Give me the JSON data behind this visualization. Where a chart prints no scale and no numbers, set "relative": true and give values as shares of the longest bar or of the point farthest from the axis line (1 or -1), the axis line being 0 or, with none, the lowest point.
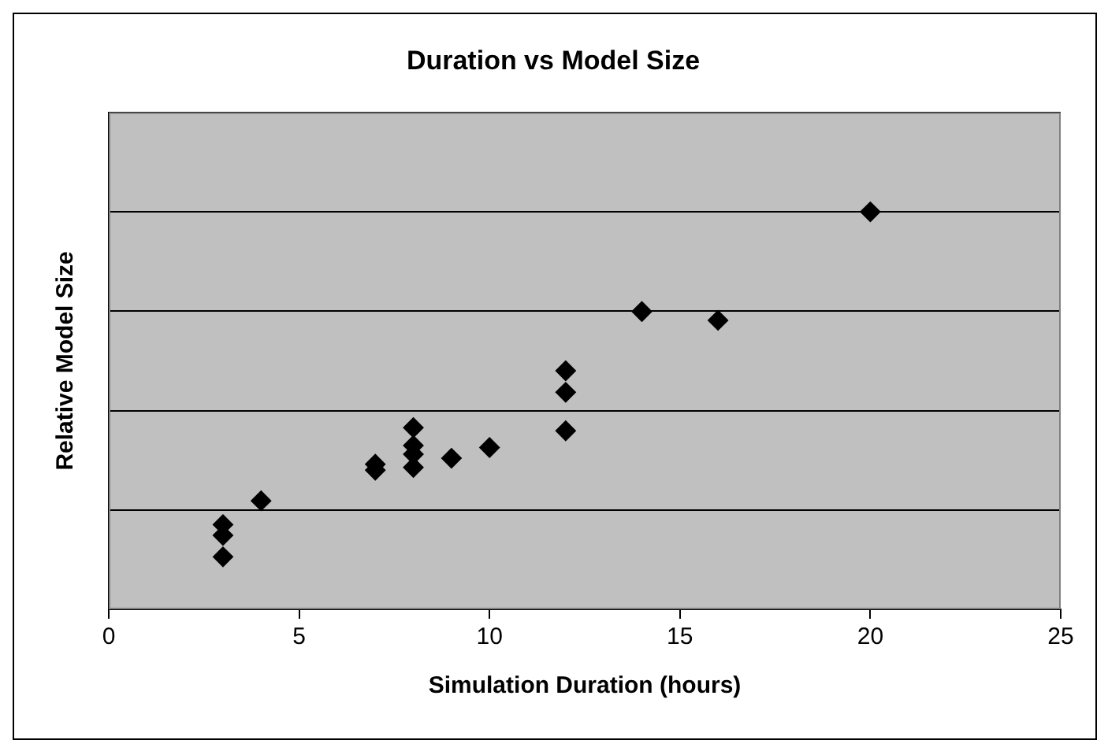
{
  "chart_data": {
    "type": "scatter",
    "title": "Duration vs Model Size",
    "xlabel": "Simulation Duration (hours)",
    "ylabel": "Relative Model Size",
    "relative": true,
    "x": [
      3,
      3,
      3,
      4,
      7,
      7,
      8,
      8,
      8,
      8,
      9,
      10,
      12,
      12,
      12,
      14,
      16,
      20
    ],
    "series": [
      {
        "color": "#000000",
        "values": [
          0.213,
          0.186,
          0.132,
          0.273,
          0.365,
          0.35,
          0.457,
          0.412,
          0.39,
          0.357,
          0.38,
          0.407,
          0.6,
          0.546,
          0.449,
          0.749,
          0.727,
          1
        ]
      }
    ],
    "xlim": [
      0,
      25
    ],
    "xticks": [
      0,
      5,
      10,
      15,
      20,
      25
    ],
    "grid": "y",
    "legend": false,
    "marker": "diamond"
  }
}
